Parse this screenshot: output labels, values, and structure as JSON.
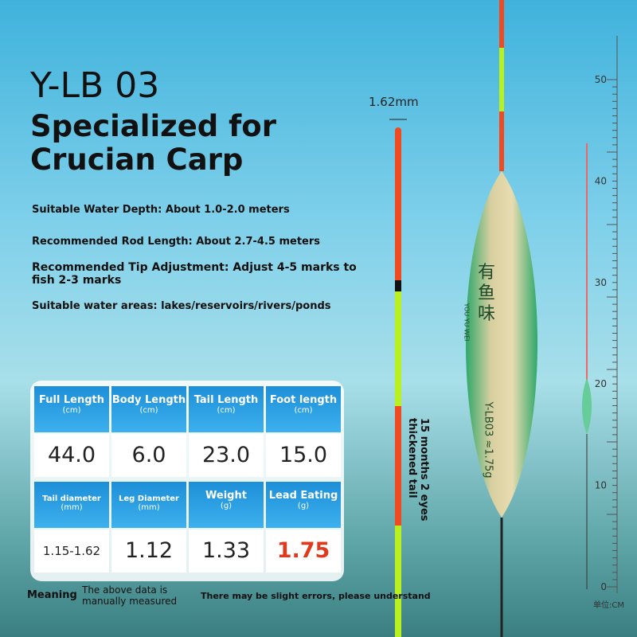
{
  "header": {
    "model": "Y-LB 03",
    "headline": "Specialized for Crucian Carp"
  },
  "specs": [
    "Suitable Water Depth: About 1.0-2.0 meters",
    "Recommended Rod Length: About 2.7-4.5 meters",
    "Recommended Tip Adjustment: Adjust 4-5 marks to fish 2-3 marks",
    "Suitable water areas: lakes/reservoirs/rivers/ponds"
  ],
  "tip_diameter": "1.62mm",
  "tail_note": "15 months 2 eyes thickened tail",
  "float_print": {
    "brand": "有鱼味",
    "pinyin": "YOU YU WEI",
    "model": "Y-LB03 ≈1.75g"
  },
  "table": {
    "rows": [
      [
        {
          "label": "Full Length",
          "unit": "(cm)"
        },
        {
          "label": "Body Length",
          "unit": "(cm)"
        },
        {
          "label": "Tail Length",
          "unit": "(cm)"
        },
        {
          "label": "Foot length",
          "unit": "(cm)"
        }
      ],
      [
        "44.0",
        "6.0",
        "23.0",
        "15.0"
      ],
      [
        {
          "label": "Tail diameter",
          "unit": "(mm)"
        },
        {
          "label": "Leg Diameter",
          "unit": "(mm)"
        },
        {
          "label": "Weight",
          "unit": "(g)"
        },
        {
          "label": "Lead Eating",
          "unit": "(g)"
        }
      ],
      [
        "1.15-1.62",
        "1.12",
        "1.33",
        "1.75"
      ]
    ]
  },
  "ruler": {
    "labels": [
      "50",
      "40",
      "30",
      "20",
      "10",
      "0"
    ],
    "unit": "单位:CM"
  },
  "footer": {
    "meaning": "Meaning",
    "measured": "The above data is manually measured",
    "errors": "There may be slight errors, please understand"
  }
}
